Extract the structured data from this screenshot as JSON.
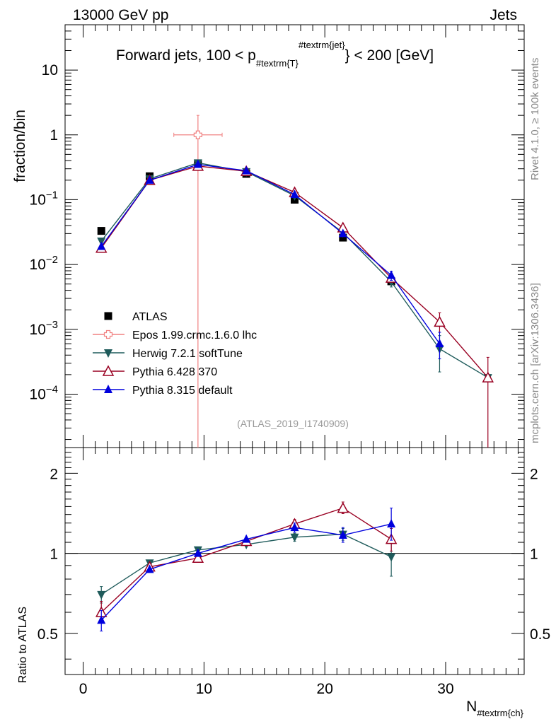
{
  "header": {
    "left": "13000 GeV pp",
    "right": "Jets",
    "side_top": "Rivet 4.1.0, ≥ 100k events",
    "side_bottom": "mcplots.cern.ch [arXiv:1306.3436]"
  },
  "chart_data": [
    {
      "type": "line",
      "panel": "main",
      "title": "Forward jets, 100 < p",
      "title_sub": "#textrm{T}",
      "title_sup": "#textrm{jet}",
      "title_end": "} < 200 [GeV]",
      "ylabel": "fraction/bin",
      "yscale": "log",
      "ylim": [
        1.5e-05,
        50
      ],
      "xlim": [
        -1.5,
        36.5
      ],
      "y_ticks": [
        {
          "value": 10,
          "label": "10"
        },
        {
          "value": 1,
          "label": "1"
        },
        {
          "value": 0.1,
          "base": "10",
          "exp": "−1"
        },
        {
          "value": 0.01,
          "base": "10",
          "exp": "−2"
        },
        {
          "value": 0.001,
          "base": "10",
          "exp": "−3"
        },
        {
          "value": 0.0001,
          "base": "10",
          "exp": "−4"
        }
      ],
      "watermark": "(ATLAS_2019_I1740909)",
      "series": [
        {
          "name": "ATLAS",
          "color": "#000000",
          "marker": "square",
          "x": [
            1.5,
            5.5,
            9.5,
            13.5,
            17.5,
            21.5,
            25.5
          ],
          "y": [
            0.033,
            0.23,
            0.36,
            0.25,
            0.1,
            0.026,
            0.0055
          ]
        },
        {
          "name": "Epos 1.99.crmc.1.6.0 lhc",
          "color": "#f08080",
          "marker": "open-cross",
          "x": [
            9.5
          ],
          "y": [
            1.0
          ],
          "xerr": [
            [
              7.5,
              11.5
            ]
          ],
          "yerr": [
            [
              1e-06,
              2.0
            ]
          ]
        },
        {
          "name": "Herwig 7.2.1 softTune",
          "color": "#1f5b5b",
          "marker": "triangle-down",
          "x": [
            1.5,
            5.5,
            9.5,
            13.5,
            17.5,
            21.5,
            25.5,
            29.5,
            33.5
          ],
          "y": [
            0.023,
            0.21,
            0.37,
            0.27,
            0.115,
            0.031,
            0.0054,
            0.0005,
            0.00018
          ],
          "yerr": [
            null,
            null,
            null,
            null,
            null,
            null,
            [
              0.0045,
              0.0066
            ],
            [
              0.00022,
              0.0008
            ],
            null
          ]
        },
        {
          "name": "Pythia 6.428 370",
          "color": "#990022",
          "marker": "open-triangle",
          "x": [
            1.5,
            5.5,
            9.5,
            13.5,
            17.5,
            21.5,
            25.5,
            29.5,
            33.5
          ],
          "y": [
            0.018,
            0.2,
            0.33,
            0.275,
            0.13,
            0.037,
            0.0062,
            0.0013,
            0.00018
          ],
          "yerr": [
            null,
            null,
            null,
            null,
            null,
            null,
            null,
            [
              0.0009,
              0.0018
            ],
            [
              1e-06,
              0.00037
            ]
          ]
        },
        {
          "name": "Pythia 8.315 default",
          "color": "#0000dd",
          "marker": "triangle",
          "x": [
            1.5,
            5.5,
            9.5,
            13.5,
            17.5,
            21.5,
            25.5,
            29.5
          ],
          "y": [
            0.019,
            0.2,
            0.35,
            0.28,
            0.12,
            0.03,
            0.0068,
            0.0006
          ],
          "yerr": [
            null,
            null,
            null,
            null,
            null,
            null,
            [
              0.0057,
              0.0079
            ],
            [
              0.00035,
              0.0009
            ]
          ]
        }
      ]
    },
    {
      "type": "line",
      "panel": "ratio",
      "ylabel": "Ratio to ATLAS",
      "xlabel": "N",
      "xlabel_sub": "#textrm{ch}",
      "yscale": "log",
      "ylim": [
        0.35,
        2.5
      ],
      "reference": 1,
      "x_ticks": [
        0,
        10,
        20,
        30
      ],
      "y_ticks": [
        {
          "value": 2,
          "label": "2"
        },
        {
          "value": 1,
          "label": "1"
        },
        {
          "value": 0.5,
          "label": "0.5"
        }
      ],
      "series": [
        {
          "name": "Herwig 7.2.1 softTune",
          "color": "#1f5b5b",
          "marker": "triangle-down",
          "x": [
            1.5,
            5.5,
            9.5,
            13.5,
            17.5,
            21.5,
            25.5
          ],
          "y": [
            0.7,
            0.92,
            1.03,
            1.08,
            1.15,
            1.18,
            0.97
          ],
          "yerr": [
            [
              0.65,
              0.75
            ],
            null,
            null,
            null,
            [
              1.11,
              1.19
            ],
            [
              1.12,
              1.24
            ],
            [
              0.82,
              1.12
            ]
          ]
        },
        {
          "name": "Pythia 6.428 370",
          "color": "#990022",
          "marker": "open-triangle",
          "x": [
            1.5,
            5.5,
            9.5,
            13.5,
            17.5,
            21.5,
            25.5
          ],
          "y": [
            0.6,
            0.89,
            0.96,
            1.11,
            1.29,
            1.48,
            1.13
          ],
          "yerr": [
            [
              0.55,
              0.66
            ],
            null,
            null,
            null,
            [
              1.24,
              1.34
            ],
            [
              1.41,
              1.56
            ],
            [
              1.02,
              1.24
            ]
          ]
        },
        {
          "name": "Pythia 8.315 default",
          "color": "#0000dd",
          "marker": "triangle",
          "x": [
            1.5,
            5.5,
            9.5,
            13.5,
            17.5,
            21.5,
            25.5
          ],
          "y": [
            0.56,
            0.87,
            1.0,
            1.13,
            1.25,
            1.17,
            1.29
          ],
          "yerr": [
            [
              0.51,
              0.61
            ],
            null,
            null,
            null,
            [
              1.2,
              1.3
            ],
            [
              1.1,
              1.25
            ],
            [
              1.12,
              1.48
            ]
          ]
        }
      ]
    }
  ]
}
